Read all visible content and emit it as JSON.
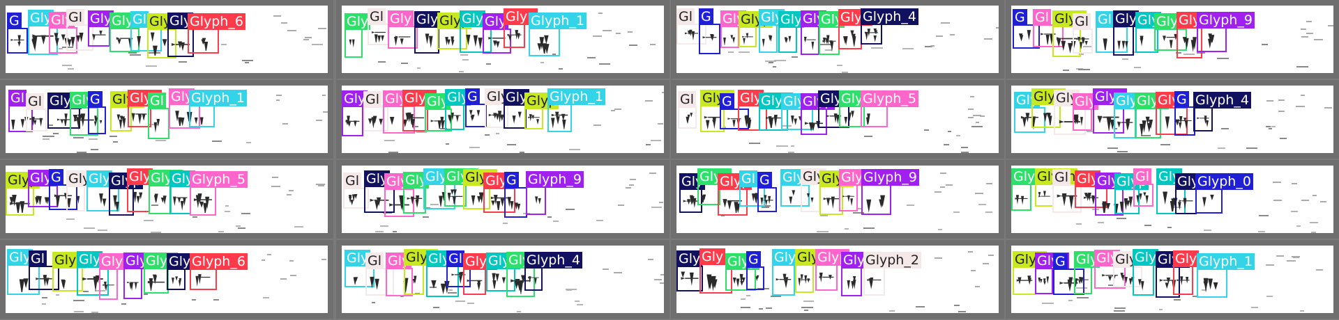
{
  "glyph_label_prefix": "Glyph_",
  "palette": [
    "#1f1fd6",
    "#00c060",
    "#ff66cc",
    "#ffffff",
    "#a020f0",
    "#2ee06a",
    "#33d4e8",
    "#c8e820",
    "#11115f",
    "#ff3a4a",
    "#00c8c0",
    "#ff7fdd",
    "#f5e8e8"
  ],
  "panels": [
    {
      "boxes": [
        {
          "c": 0,
          "t": "G"
        },
        {
          "c": 6,
          "t": "Gly"
        },
        {
          "c": 2,
          "t": "Gly"
        },
        {
          "c": 12,
          "t": "Gl"
        },
        {
          "c": 4,
          "t": "Gly"
        },
        {
          "c": 5,
          "t": "Gly"
        },
        {
          "c": 6,
          "t": "Gl"
        },
        {
          "c": 7,
          "t": "Gly"
        },
        {
          "c": 8,
          "t": "Gly"
        },
        {
          "c": 9,
          "t": "Glyph_6"
        }
      ]
    },
    {
      "boxes": [
        {
          "c": 5,
          "t": "Gly"
        },
        {
          "c": 12,
          "t": "Gl"
        },
        {
          "c": 2,
          "t": "Gly"
        },
        {
          "c": 8,
          "t": "Gly"
        },
        {
          "c": 7,
          "t": "Glyp"
        },
        {
          "c": 10,
          "t": "Gly"
        },
        {
          "c": 4,
          "t": "Gly"
        },
        {
          "c": 9,
          "t": "Glyp"
        },
        {
          "c": 6,
          "t": "Glyph_1"
        }
      ]
    },
    {
      "boxes": [
        {
          "c": 12,
          "t": "Gl"
        },
        {
          "c": 0,
          "t": "G"
        },
        {
          "c": 2,
          "t": "Gly"
        },
        {
          "c": 7,
          "t": "Glyp"
        },
        {
          "c": 6,
          "t": "Gly"
        },
        {
          "c": 10,
          "t": "Gly"
        },
        {
          "c": 4,
          "t": "Gly"
        },
        {
          "c": 5,
          "t": "Gly"
        },
        {
          "c": 9,
          "t": "Glyp"
        },
        {
          "c": 8,
          "t": "Glyph_4"
        }
      ]
    },
    {
      "boxes": [
        {
          "c": 0,
          "t": "G"
        },
        {
          "c": 2,
          "t": "Gl"
        },
        {
          "c": 7,
          "t": "Glyp"
        },
        {
          "c": 12,
          "t": "Gl"
        },
        {
          "c": 6,
          "t": "Gl"
        },
        {
          "c": 8,
          "t": "Gly"
        },
        {
          "c": 10,
          "t": "Gly"
        },
        {
          "c": 5,
          "t": "Gly"
        },
        {
          "c": 9,
          "t": "Glyp"
        },
        {
          "c": 4,
          "t": "Glyph_9"
        }
      ]
    },
    {
      "boxes": [
        {
          "c": 4,
          "t": "Gl"
        },
        {
          "c": 12,
          "t": "Gl"
        },
        {
          "c": 8,
          "t": "Glyp"
        },
        {
          "c": 5,
          "t": "Gly"
        },
        {
          "c": 0,
          "t": "G"
        },
        {
          "c": 7,
          "t": "Glyp"
        },
        {
          "c": 9,
          "t": "Glyp"
        },
        {
          "c": 5,
          "t": "Gl"
        },
        {
          "c": 2,
          "t": "Gly"
        },
        {
          "c": 6,
          "t": "Glyph_1"
        }
      ]
    },
    {
      "boxes": [
        {
          "c": 4,
          "t": "Gly"
        },
        {
          "c": 12,
          "t": "Gl"
        },
        {
          "c": 2,
          "t": "Gly"
        },
        {
          "c": 9,
          "t": "Glyp"
        },
        {
          "c": 5,
          "t": "Gly"
        },
        {
          "c": 10,
          "t": "Gly"
        },
        {
          "c": 0,
          "t": "G"
        },
        {
          "c": 12,
          "t": "Gly"
        },
        {
          "c": 8,
          "t": "Gly"
        },
        {
          "c": 7,
          "t": "Glyp"
        },
        {
          "c": 6,
          "t": "Glyph_1"
        }
      ]
    },
    {
      "boxes": [
        {
          "c": 12,
          "t": "Gl"
        },
        {
          "c": 7,
          "t": "Glyp"
        },
        {
          "c": 0,
          "t": "G"
        },
        {
          "c": 9,
          "t": "Gly"
        },
        {
          "c": 10,
          "t": "Glyp"
        },
        {
          "c": 6,
          "t": "Gly"
        },
        {
          "c": 4,
          "t": "Glyp"
        },
        {
          "c": 8,
          "t": "Gly"
        },
        {
          "c": 5,
          "t": "Gly"
        },
        {
          "c": 2,
          "t": "Glyph_5"
        }
      ]
    },
    {
      "boxes": [
        {
          "c": 6,
          "t": "Gly"
        },
        {
          "c": 7,
          "t": "Glyp"
        },
        {
          "c": 12,
          "t": "Gly"
        },
        {
          "c": 2,
          "t": "Gly"
        },
        {
          "c": 4,
          "t": "Glyp"
        },
        {
          "c": 6,
          "t": "Gly"
        },
        {
          "c": 5,
          "t": "Glyp"
        },
        {
          "c": 9,
          "t": "Gly"
        },
        {
          "c": 0,
          "t": "G"
        },
        {
          "c": 8,
          "t": "Glyph_4"
        }
      ]
    },
    {
      "boxes": [
        {
          "c": 7,
          "t": "Glyp"
        },
        {
          "c": 4,
          "t": "Gly"
        },
        {
          "c": 0,
          "t": "G"
        },
        {
          "c": 12,
          "t": "Gly"
        },
        {
          "c": 6,
          "t": "Gly"
        },
        {
          "c": 8,
          "t": "Glyp"
        },
        {
          "c": 9,
          "t": "Gly"
        },
        {
          "c": 5,
          "t": "Glyp"
        },
        {
          "c": 10,
          "t": "Gly"
        },
        {
          "c": 2,
          "t": "Glyph_5"
        }
      ]
    },
    {
      "boxes": [
        {
          "c": 12,
          "t": "Gl"
        },
        {
          "c": 8,
          "t": "Gly"
        },
        {
          "c": 2,
          "t": "Gly"
        },
        {
          "c": 5,
          "t": "Gly"
        },
        {
          "c": 6,
          "t": "Gly"
        },
        {
          "c": 5,
          "t": "Glyp"
        },
        {
          "c": 7,
          "t": "Glyp"
        },
        {
          "c": 9,
          "t": "Gly"
        },
        {
          "c": 0,
          "t": "G"
        },
        {
          "c": 4,
          "t": "Glyph_9"
        }
      ]
    },
    {
      "boxes": [
        {
          "c": 8,
          "t": "Gly"
        },
        {
          "c": 5,
          "t": "Glyp"
        },
        {
          "c": 9,
          "t": "Glyp"
        },
        {
          "c": 6,
          "t": "Gl"
        },
        {
          "c": 0,
          "t": "G"
        },
        {
          "c": 6,
          "t": "Gly"
        },
        {
          "c": 12,
          "t": "Gly"
        },
        {
          "c": 7,
          "t": "Glyp"
        },
        {
          "c": 2,
          "t": "Glyp"
        },
        {
          "c": 4,
          "t": "Glyph_9"
        }
      ]
    },
    {
      "boxes": [
        {
          "c": 5,
          "t": "Glyp"
        },
        {
          "c": 7,
          "t": "Glyph"
        },
        {
          "c": 12,
          "t": "Gl"
        },
        {
          "c": 9,
          "t": "Gly"
        },
        {
          "c": 4,
          "t": "Gly"
        },
        {
          "c": 10,
          "t": "Glyp"
        },
        {
          "c": 2,
          "t": "Gl"
        },
        {
          "c": 10,
          "t": "Gly"
        },
        {
          "c": 8,
          "t": "Gly"
        },
        {
          "c": 0,
          "t": "Glyph_0"
        }
      ]
    },
    {
      "boxes": [
        {
          "c": 6,
          "t": "Gly"
        },
        {
          "c": 8,
          "t": "Gl"
        },
        {
          "c": 7,
          "t": "Glyp"
        },
        {
          "c": 10,
          "t": "Gly"
        },
        {
          "c": 2,
          "t": "Gly"
        },
        {
          "c": 4,
          "t": "Glyp"
        },
        {
          "c": 5,
          "t": "Glyp"
        },
        {
          "c": 8,
          "t": "Gly"
        },
        {
          "c": 9,
          "t": "Glyph_6"
        }
      ]
    },
    {
      "boxes": [
        {
          "c": 6,
          "t": "Gly"
        },
        {
          "c": 12,
          "t": "Gl"
        },
        {
          "c": 2,
          "t": "Gly"
        },
        {
          "c": 7,
          "t": "Glyp"
        },
        {
          "c": 10,
          "t": "Gly"
        },
        {
          "c": 0,
          "t": "Gl"
        },
        {
          "c": 9,
          "t": "Glyp"
        },
        {
          "c": 10,
          "t": "Glyp"
        },
        {
          "c": 5,
          "t": "Glyp"
        },
        {
          "c": 8,
          "t": "Glyph_4"
        }
      ]
    },
    {
      "boxes": [
        {
          "c": 8,
          "t": "Gly"
        },
        {
          "c": 9,
          "t": "Gly"
        },
        {
          "c": 5,
          "t": "Glyp"
        },
        {
          "c": 0,
          "t": "G"
        },
        {
          "c": 6,
          "t": "Gly"
        },
        {
          "c": 7,
          "t": "Glyp"
        },
        {
          "c": 2,
          "t": "Glyp"
        },
        {
          "c": 4,
          "t": "Glyp"
        },
        {
          "c": 12,
          "t": "Glyph_2"
        }
      ]
    },
    {
      "boxes": [
        {
          "c": 7,
          "t": "Glyp"
        },
        {
          "c": 4,
          "t": "Glyp"
        },
        {
          "c": 0,
          "t": "G"
        },
        {
          "c": 5,
          "t": "Gly"
        },
        {
          "c": 2,
          "t": "Gly"
        },
        {
          "c": 12,
          "t": "Gly"
        },
        {
          "c": 10,
          "t": "Gly"
        },
        {
          "c": 8,
          "t": "Glyp"
        },
        {
          "c": 9,
          "t": "Gly"
        },
        {
          "c": 6,
          "t": "Glyph_1"
        }
      ]
    }
  ]
}
